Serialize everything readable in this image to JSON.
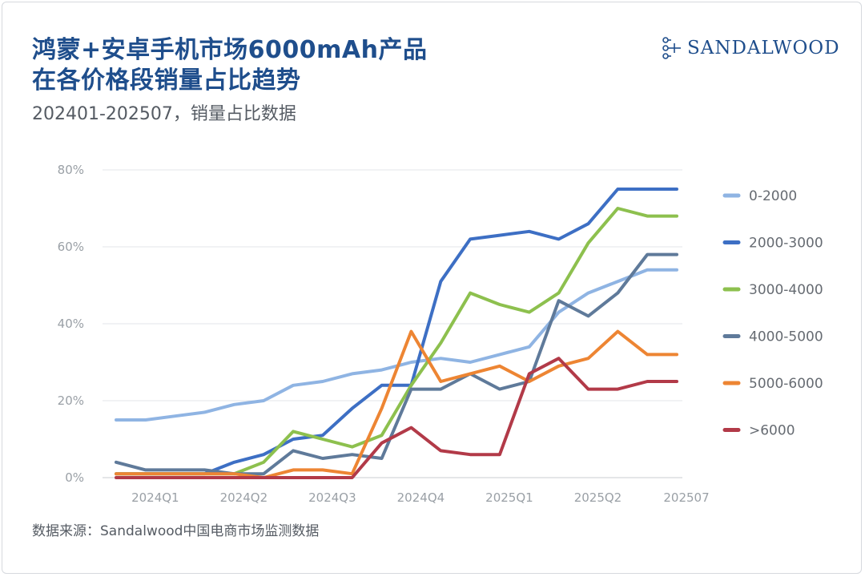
{
  "header": {
    "title_line1": "鸿蒙+安卓手机市场6000mAh产品",
    "title_line2": "在各价格段销量占比趋势",
    "subtitle": "202401-202507，销量占比数据"
  },
  "logo": {
    "text": "SANDALWOOD",
    "icon": "sandalwood-logo-icon"
  },
  "footer": {
    "source": "数据来源：Sandalwood中国电商市场监测数据"
  },
  "colors": {
    "0-2000": "#8fb4e3",
    "2000-3000": "#3d6fc4",
    "3000-4000": "#8dc04e",
    "4000-5000": "#5f7a9a",
    "5000-6000": "#ed8533",
    "6000+": "#b23a48"
  },
  "chart_data": {
    "type": "line",
    "title": "鸿蒙+安卓手机市场6000mAh产品在各价格段销量占比趋势",
    "xlabel": "",
    "ylabel": "",
    "ylim": [
      0,
      80
    ],
    "yticks": [
      "0%",
      "20%",
      "40%",
      "60%",
      "80%"
    ],
    "ytick_values": [
      0,
      20,
      40,
      60,
      80
    ],
    "x_tick_labels": [
      "2024Q1",
      "2024Q2",
      "2024Q3",
      "2024Q4",
      "2025Q1",
      "2025Q2",
      "202507"
    ],
    "x_tick_positions": [
      1,
      4,
      7,
      10,
      13,
      16,
      19
    ],
    "x": [
      0,
      1,
      2,
      3,
      4,
      5,
      6,
      7,
      8,
      9,
      10,
      11,
      12,
      13,
      14,
      15,
      16,
      17,
      18,
      19
    ],
    "legend_position": "right",
    "series": [
      {
        "name": "0-2000",
        "color": "#8fb4e3",
        "values": [
          15,
          15,
          16,
          17,
          19,
          20,
          24,
          25,
          27,
          28,
          30,
          31,
          30,
          32,
          34,
          43,
          48,
          51,
          54,
          54
        ]
      },
      {
        "name": "2000-3000",
        "color": "#3d6fc4",
        "values": [
          1,
          1,
          1,
          1,
          4,
          6,
          10,
          11,
          18,
          24,
          24,
          51,
          62,
          63,
          64,
          62,
          66,
          75,
          75,
          75
        ]
      },
      {
        "name": "3000-4000",
        "color": "#8dc04e",
        "values": [
          1,
          1,
          1,
          1,
          1,
          4,
          12,
          10,
          8,
          11,
          24,
          35,
          48,
          45,
          43,
          48,
          61,
          70,
          68,
          68
        ]
      },
      {
        "name": "4000-5000",
        "color": "#5f7a9a",
        "values": [
          4,
          2,
          2,
          2,
          1,
          1,
          7,
          5,
          6,
          5,
          23,
          23,
          27,
          23,
          25,
          46,
          42,
          48,
          58,
          58
        ]
      },
      {
        "name": "5000-6000",
        "color": "#ed8533",
        "values": [
          1,
          1,
          1,
          1,
          1,
          0,
          2,
          2,
          1,
          18,
          38,
          25,
          27,
          29,
          25,
          29,
          31,
          38,
          32,
          32
        ]
      },
      {
        "name": ">6000",
        "color": "#b23a48",
        "values": [
          0,
          0,
          0,
          0,
          0,
          0,
          0,
          0,
          0,
          9,
          13,
          7,
          6,
          6,
          27,
          31,
          23,
          23,
          25,
          25
        ]
      }
    ]
  }
}
